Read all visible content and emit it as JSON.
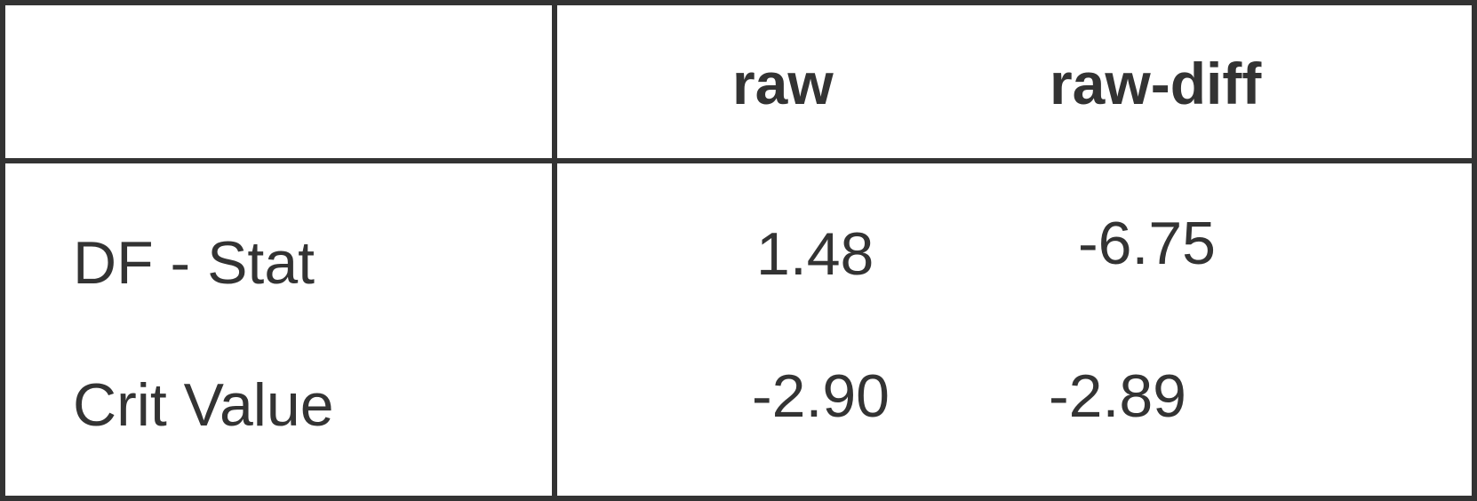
{
  "table": {
    "columns": [
      "",
      "raw",
      "raw-diff"
    ],
    "rows": [
      {
        "label": "DF - Stat",
        "values": [
          "1.48",
          "-6.75"
        ]
      },
      {
        "label": "Crit Value",
        "values": [
          "-2.90",
          "-2.89"
        ]
      }
    ]
  },
  "colors": {
    "border": "#333333",
    "text": "#333333",
    "background": "#ffffff"
  }
}
